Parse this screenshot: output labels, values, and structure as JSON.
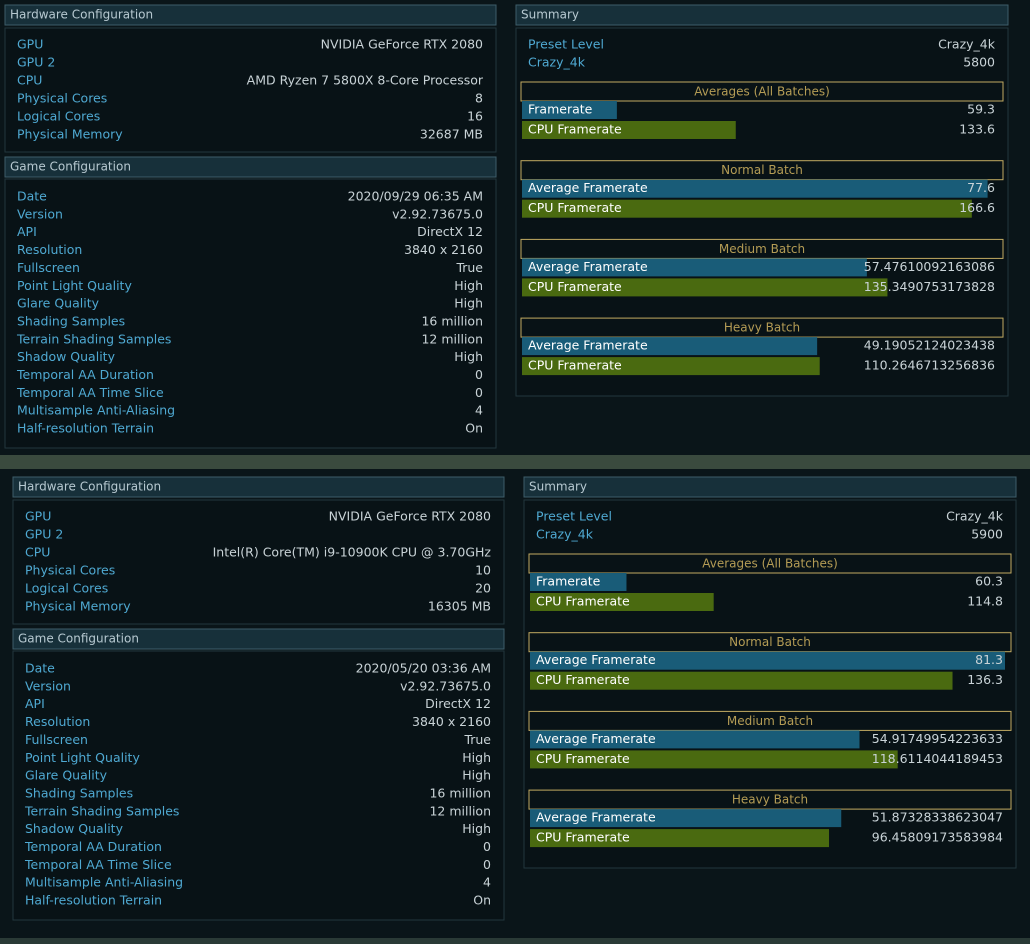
{
  "panels": [
    {
      "hardware": {
        "title": "Hardware Configuration",
        "rows": [
          [
            "GPU",
            "NVIDIA GeForce RTX 2080"
          ],
          [
            "GPU 2",
            ""
          ],
          [
            "CPU",
            "AMD Ryzen 7 5800X 8-Core Processor"
          ],
          [
            "Physical Cores",
            "8"
          ],
          [
            "Logical Cores",
            "16"
          ],
          [
            "Physical Memory",
            "32687 MB"
          ]
        ]
      },
      "game": {
        "title": "Game Configuration",
        "rows": [
          [
            "Date",
            "2020/09/29 06:35 AM"
          ],
          [
            "Version",
            "v2.92.73675.0"
          ],
          [
            "API",
            "DirectX 12"
          ],
          [
            "Resolution",
            "3840 x 2160"
          ],
          [
            "Fullscreen",
            "True"
          ],
          [
            "Point Light Quality",
            "High"
          ],
          [
            "Glare Quality",
            "High"
          ],
          [
            "Shading Samples",
            "16 million"
          ],
          [
            "Terrain Shading Samples",
            "12 million"
          ],
          [
            "Shadow Quality",
            "High"
          ],
          [
            "Temporal AA Duration",
            "0"
          ],
          [
            "Temporal AA Time Slice",
            "0"
          ],
          [
            "Multisample Anti-Aliasing",
            "4"
          ],
          [
            "Half-resolution Terrain",
            "On"
          ]
        ]
      },
      "summary": {
        "title": "Summary",
        "preset": [
          [
            "Preset Level",
            "Crazy_4k"
          ],
          [
            "Crazy_4k",
            "5800"
          ]
        ],
        "sections": [
          {
            "title": "Averages (All Batches)",
            "bars": [
              {
                "label": "Framerate",
                "value": 59.3
              },
              {
                "label": "CPU Framerate",
                "value": 133.6
              }
            ]
          },
          {
            "title": "Normal Batch",
            "bars": [
              {
                "label": "Average Framerate",
                "value": 77.6
              },
              {
                "label": "CPU Framerate",
                "value": 166.6
              }
            ]
          },
          {
            "title": "Medium Batch",
            "bars": [
              {
                "label": "Average Framerate",
                "value": 57.47610092163086
              },
              {
                "label": "CPU Framerate",
                "value": 135.3490753173828
              }
            ]
          },
          {
            "title": "Heavy Batch",
            "bars": [
              {
                "label": "Average Framerate",
                "value": 49.19052124023438
              },
              {
                "label": "CPU Framerate",
                "value": 110.2646713256836
              }
            ]
          }
        ]
      }
    },
    {
      "hardware": {
        "title": "Hardware Configuration",
        "rows": [
          [
            "GPU",
            "NVIDIA GeForce RTX 2080"
          ],
          [
            "GPU 2",
            ""
          ],
          [
            "CPU",
            "Intel(R) Core(TM) i9-10900K CPU @ 3.70GHz"
          ],
          [
            "Physical Cores",
            "10"
          ],
          [
            "Logical Cores",
            "20"
          ],
          [
            "Physical Memory",
            "16305 MB"
          ]
        ]
      },
      "game": {
        "title": "Game Configuration",
        "rows": [
          [
            "Date",
            "2020/05/20 03:36 AM"
          ],
          [
            "Version",
            "v2.92.73675.0"
          ],
          [
            "API",
            "DirectX 12"
          ],
          [
            "Resolution",
            "3840 x 2160"
          ],
          [
            "Fullscreen",
            "True"
          ],
          [
            "Point Light Quality",
            "High"
          ],
          [
            "Glare Quality",
            "High"
          ],
          [
            "Shading Samples",
            "16 million"
          ],
          [
            "Terrain Shading Samples",
            "12 million"
          ],
          [
            "Shadow Quality",
            "High"
          ],
          [
            "Temporal AA Duration",
            "0"
          ],
          [
            "Temporal AA Time Slice",
            "0"
          ],
          [
            "Multisample Anti-Aliasing",
            "4"
          ],
          [
            "Half-resolution Terrain",
            "On"
          ]
        ]
      },
      "summary": {
        "title": "Summary",
        "preset": [
          [
            "Preset Level",
            "Crazy_4k"
          ],
          [
            "Crazy_4k",
            "5900"
          ]
        ],
        "sections": [
          {
            "title": "Averages (All Batches)",
            "bars": [
              {
                "label": "Framerate",
                "value": 60.3
              },
              {
                "label": "CPU Framerate",
                "value": 114.8
              }
            ]
          },
          {
            "title": "Normal Batch",
            "bars": [
              {
                "label": "Average Framerate",
                "value": 81.3
              },
              {
                "label": "CPU Framerate",
                "value": 136.3
              }
            ]
          },
          {
            "title": "Medium Batch",
            "bars": [
              {
                "label": "Average Framerate",
                "value": 54.91749954223633
              },
              {
                "label": "CPU Framerate",
                "value": 118.6114044189453
              }
            ]
          },
          {
            "title": "Heavy Batch",
            "bars": [
              {
                "label": "Average Framerate",
                "value": 51.87328338623047
              },
              {
                "label": "CPU Framerate",
                "value": 96.45809173583984
              }
            ]
          }
        ]
      }
    }
  ]
}
